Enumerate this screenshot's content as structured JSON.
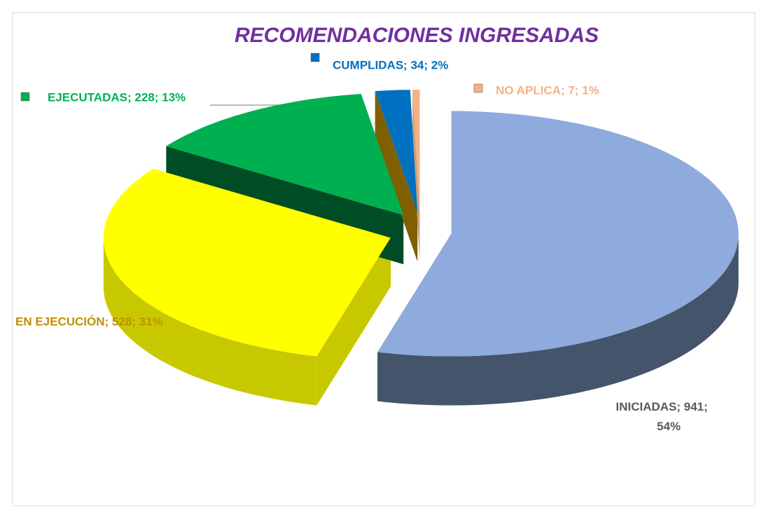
{
  "chart_data": {
    "type": "pie3d",
    "title": "RECOMENDACIONES INGRESADAS",
    "categories": [
      "INICIADAS",
      "EN EJECUCIÓN",
      "EJECUTADAS",
      "CUMPLIDAS",
      "NO APLICA"
    ],
    "values": [
      941,
      528,
      228,
      34,
      7
    ],
    "value_labels": [
      "INICIADAS; 941; 54%",
      "EN EJECUCIÓN; 528; 31%",
      "EJECUTADAS; 228; 13%",
      "CUMPLIDAS; 34; 2%",
      "NO APLICA; 7; 1%"
    ],
    "colors": [
      "#8faadc",
      "#ffff00",
      "#00b050",
      "#0070c0",
      "#f4b183"
    ],
    "side_colors": [
      "#44546a",
      "#c8c800",
      "#004d25",
      "#7f6000",
      "#c9a080"
    ],
    "label_colors": [
      "#595959",
      "#bf9000",
      "#00b050",
      "#0070c0",
      "#f4b183"
    ]
  }
}
